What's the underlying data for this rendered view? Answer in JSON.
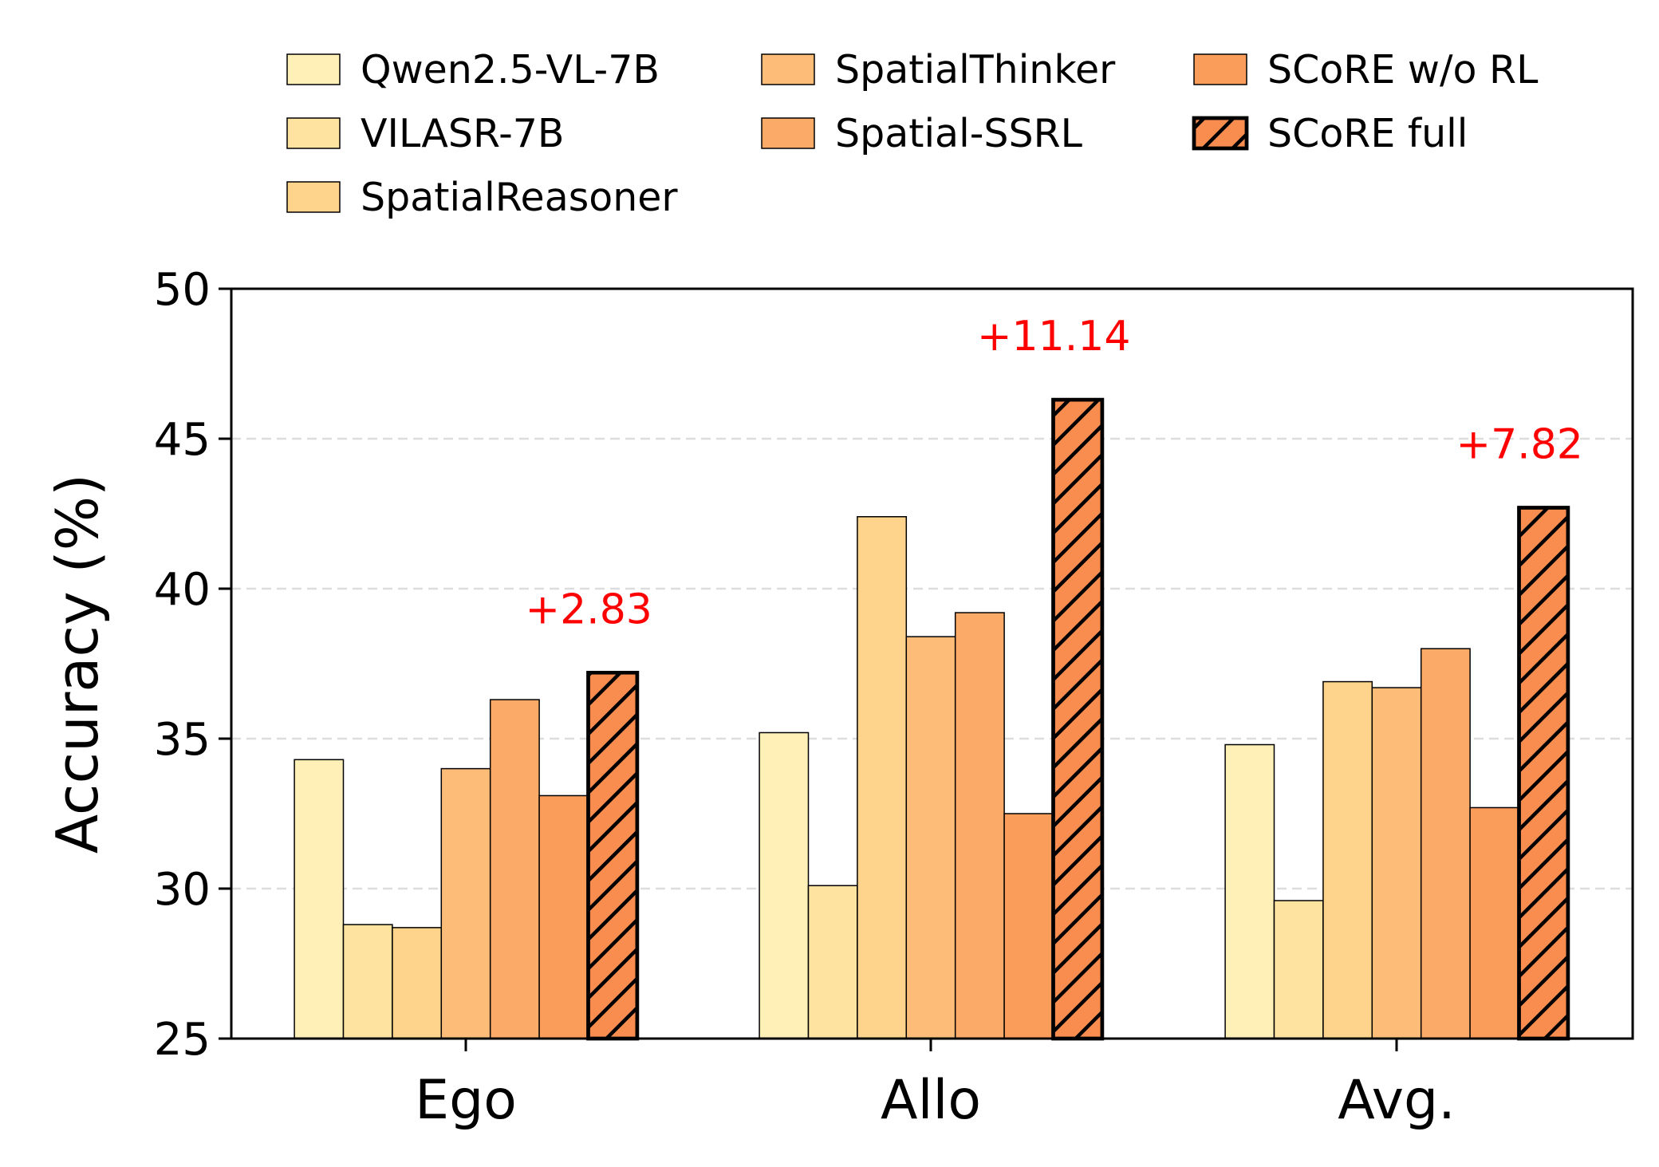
{
  "chart_data": {
    "type": "bar",
    "categories": [
      "Ego",
      "Allo",
      "Avg."
    ],
    "ylabel": "Accuracy (%)",
    "xlabel": "",
    "title": "",
    "ylim": [
      25,
      50
    ],
    "yticks": [
      25,
      30,
      35,
      40,
      45,
      50
    ],
    "grid": "y-dashed",
    "legend_position": "top",
    "series": [
      {
        "name": "Qwen2.5-VL-7B",
        "values": [
          34.3,
          35.2,
          34.8
        ],
        "color": "#fff0b8",
        "hatch": false
      },
      {
        "name": "VILASR-7B",
        "values": [
          28.8,
          30.1,
          29.6
        ],
        "color": "#fee3a0",
        "hatch": false
      },
      {
        "name": "SpatialReasoner",
        "values": [
          28.7,
          42.4,
          36.9
        ],
        "color": "#fed48c",
        "hatch": false
      },
      {
        "name": "SpatialThinker",
        "values": [
          34.0,
          38.4,
          36.7
        ],
        "color": "#fdbd78",
        "hatch": false
      },
      {
        "name": "Spatial-SSRL",
        "values": [
          36.3,
          39.2,
          38.0
        ],
        "color": "#fcaa68",
        "hatch": false
      },
      {
        "name": "SCoRE w/o RL",
        "values": [
          33.1,
          32.5,
          32.7
        ],
        "color": "#fb9d5a",
        "hatch": false
      },
      {
        "name": "SCoRE full",
        "values": [
          37.2,
          46.3,
          42.7
        ],
        "color": "#f88d4f",
        "hatch": true
      }
    ],
    "annotations": [
      {
        "category": "Ego",
        "text": "+2.83",
        "color": "#ff0000"
      },
      {
        "category": "Allo",
        "text": "+11.14",
        "color": "#ff0000"
      },
      {
        "category": "Avg.",
        "text": "+7.82",
        "color": "#ff0000"
      }
    ]
  }
}
